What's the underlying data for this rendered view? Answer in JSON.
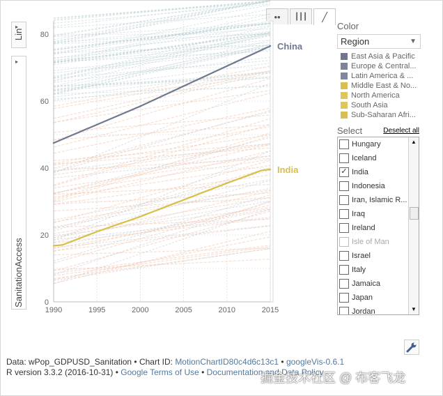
{
  "toolbar": {
    "tabs": [
      {
        "name": "bubble-chart-tab",
        "icon": "bubble-icon",
        "glyph": "••"
      },
      {
        "name": "bar-chart-tab",
        "icon": "bar-chart-icon",
        "glyph": "┃┃┃"
      },
      {
        "name": "line-chart-tab",
        "icon": "line-chart-icon",
        "glyph": "╱"
      }
    ]
  },
  "y_controls": {
    "scale": "Lin",
    "variable": "SanitationAccess",
    "arrow": "▸"
  },
  "color_panel": {
    "title": "Color",
    "selected": "Region",
    "legend": [
      {
        "label": "East Asia & Pacific",
        "color": "#6e7691"
      },
      {
        "label": "Europe & Central...",
        "color": "#7b8499"
      },
      {
        "label": "Latin America & ...",
        "color": "#7e879e"
      },
      {
        "label": "Middle East & No...",
        "color": "#d9bf52"
      },
      {
        "label": "North America",
        "color": "#e2c55a"
      },
      {
        "label": "South Asia",
        "color": "#e2c55a"
      },
      {
        "label": "Sub-Saharan Afri...",
        "color": "#d8be55"
      }
    ]
  },
  "select_panel": {
    "title": "Select",
    "deselect": "Deselect all",
    "items": [
      {
        "label": "Hungary",
        "checked": false,
        "dim": false
      },
      {
        "label": "Iceland",
        "checked": false,
        "dim": false
      },
      {
        "label": "India",
        "checked": true,
        "dim": false
      },
      {
        "label": "Indonesia",
        "checked": false,
        "dim": false
      },
      {
        "label": "Iran, Islamic R...",
        "checked": false,
        "dim": false
      },
      {
        "label": "Iraq",
        "checked": false,
        "dim": false
      },
      {
        "label": "Ireland",
        "checked": false,
        "dim": false
      },
      {
        "label": "Isle of Man",
        "checked": false,
        "dim": true
      },
      {
        "label": "Israel",
        "checked": false,
        "dim": false
      },
      {
        "label": "Italy",
        "checked": false,
        "dim": false
      },
      {
        "label": "Jamaica",
        "checked": false,
        "dim": false
      },
      {
        "label": "Japan",
        "checked": false,
        "dim": false
      },
      {
        "label": "Jordan",
        "checked": false,
        "dim": false
      }
    ]
  },
  "footer": {
    "line1_prefix": "Data: wPop_GDPUSD_Sanitation • Chart ID: ",
    "chart_id": "MotionChartID80c4d6c13c1",
    "line1_sep": " • ",
    "googlevis": "googleVis-0.6.1",
    "line2_prefix": "R version 3.3.2 (2016-10-31) • ",
    "terms": "Google Terms of Use",
    "line2_sep": " • ",
    "docs": "Documentation and Data Policy"
  },
  "watermark": "掘金技术社区 @ 布客飞龙",
  "chart_data": {
    "type": "line",
    "title": "",
    "xlabel": "",
    "ylabel": "SanitationAccess",
    "xlim": [
      1990,
      2015
    ],
    "ylim": [
      0,
      84
    ],
    "xticks": [
      1990,
      1995,
      2000,
      2005,
      2010,
      2015
    ],
    "yticks": [
      0,
      20,
      40,
      60,
      80
    ],
    "grid": true,
    "series": [
      {
        "name": "China",
        "color": "#6f7891",
        "x": [
          1990,
          1995,
          2000,
          2005,
          2010,
          2015
        ],
        "values": [
          47.5,
          53,
          58.5,
          64.5,
          70.5,
          76.5
        ]
      },
      {
        "name": "India",
        "color": "#d6c04a",
        "x": [
          1990,
          1991,
          1995,
          2000,
          2005,
          2010,
          2014,
          2015
        ],
        "values": [
          16.8,
          17,
          21,
          25.5,
          30.5,
          35.5,
          39.3,
          39.6
        ]
      }
    ]
  }
}
